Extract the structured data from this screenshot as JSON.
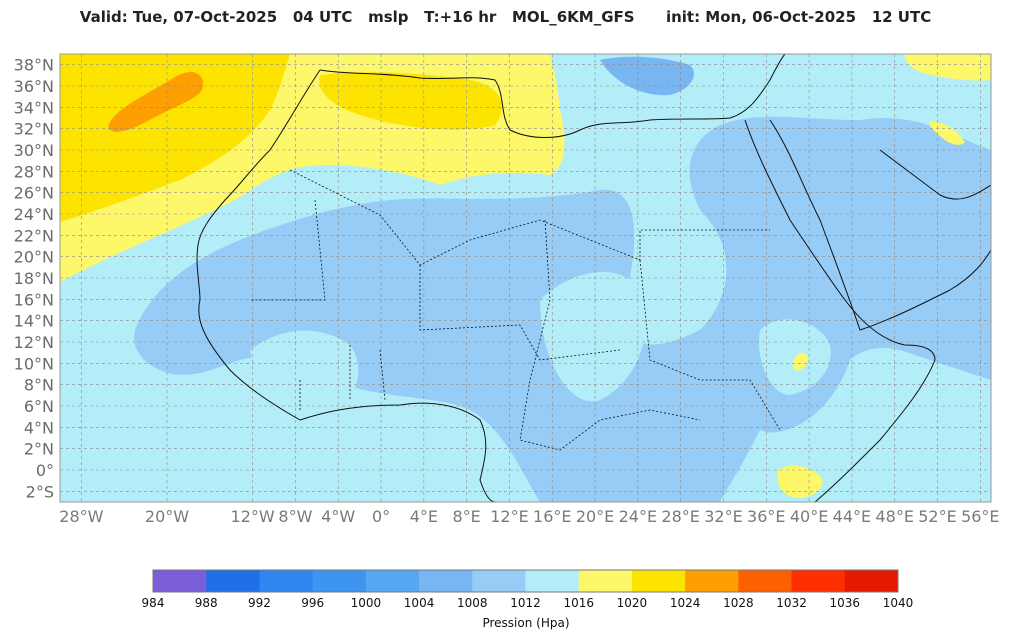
{
  "title": {
    "valid": "Valid: Tue, 07-Oct-2025",
    "hour": "04 UTC",
    "variable": "mslp",
    "lead": "T:+16 hr",
    "model": "MOL_6KM_GFS",
    "init": "init: Mon, 06-Oct-2025",
    "init_hour": "12 UTC"
  },
  "map": {
    "lon_min": -30,
    "lon_max": 57,
    "lat_min": -3,
    "lat_max": 39,
    "lat_ticks": [
      {
        "value": 38,
        "label": "38°N"
      },
      {
        "value": 36,
        "label": "36°N"
      },
      {
        "value": 34,
        "label": "34°N"
      },
      {
        "value": 32,
        "label": "32°N"
      },
      {
        "value": 30,
        "label": "30°N"
      },
      {
        "value": 28,
        "label": "28°N"
      },
      {
        "value": 26,
        "label": "26°N"
      },
      {
        "value": 24,
        "label": "24°N"
      },
      {
        "value": 22,
        "label": "22°N"
      },
      {
        "value": 20,
        "label": "20°N"
      },
      {
        "value": 18,
        "label": "18°N"
      },
      {
        "value": 16,
        "label": "16°N"
      },
      {
        "value": 14,
        "label": "14°N"
      },
      {
        "value": 12,
        "label": "12°N"
      },
      {
        "value": 10,
        "label": "10°N"
      },
      {
        "value": 8,
        "label": "8°N"
      },
      {
        "value": 6,
        "label": "6°N"
      },
      {
        "value": 4,
        "label": "4°N"
      },
      {
        "value": 2,
        "label": "2°N"
      },
      {
        "value": 0,
        "label": "0°"
      },
      {
        "value": -2,
        "label": "2°S"
      }
    ],
    "lon_ticks": [
      {
        "value": -28,
        "label": "28°W"
      },
      {
        "value": -20,
        "label": "20°W"
      },
      {
        "value": -12,
        "label": "12°W"
      },
      {
        "value": -8,
        "label": "8°W"
      },
      {
        "value": -4,
        "label": "4°W"
      },
      {
        "value": 0,
        "label": "0°"
      },
      {
        "value": 4,
        "label": "4°E"
      },
      {
        "value": 8,
        "label": "8°E"
      },
      {
        "value": 12,
        "label": "12°E"
      },
      {
        "value": 16,
        "label": "16°E"
      },
      {
        "value": 20,
        "label": "20°E"
      },
      {
        "value": 24,
        "label": "24°E"
      },
      {
        "value": 28,
        "label": "28°E"
      },
      {
        "value": 32,
        "label": "32°E"
      },
      {
        "value": 36,
        "label": "36°E"
      },
      {
        "value": 40,
        "label": "40°E"
      },
      {
        "value": 44,
        "label": "44°E"
      },
      {
        "value": 48,
        "label": "48°E"
      },
      {
        "value": 52,
        "label": "52°E"
      },
      {
        "value": 56,
        "label": "56°E"
      }
    ],
    "background_color": "#b3eef8"
  },
  "colorbar": {
    "title": "Pression (Hpa)",
    "levels": [
      "984",
      "988",
      "992",
      "996",
      "1000",
      "1004",
      "1008",
      "1012",
      "1016",
      "1020",
      "1024",
      "1028",
      "1032",
      "1036",
      "1040"
    ],
    "colors": [
      "#7b5fd9",
      "#1f6fe6",
      "#2e86ee",
      "#3d95f0",
      "#56a8f2",
      "#78b6f3",
      "#97ccf7",
      "#b3eef8",
      "#fdf76a",
      "#fde400",
      "#fd9f00",
      "#fd6000",
      "#fd2f00",
      "#e51800"
    ]
  }
}
